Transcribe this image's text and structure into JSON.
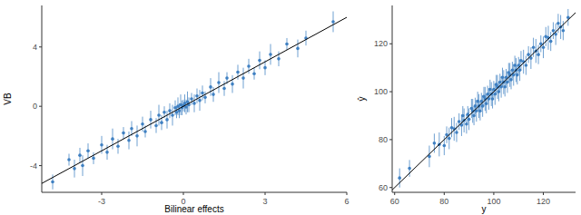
{
  "chart_data": [
    {
      "type": "scatter",
      "xlabel": "Bilinear effects",
      "ylabel": "VB",
      "color": "#3f80c2",
      "marker": "circle",
      "xlim": [
        -5.2,
        6.0
      ],
      "ylim": [
        -5.8,
        6.8
      ],
      "xticks": [
        -3,
        0,
        3,
        6
      ],
      "yticks": [
        -4,
        0,
        4
      ],
      "x": [
        -4.8,
        -4.2,
        -4.0,
        -3.8,
        -3.7,
        -3.5,
        -3.3,
        -3.0,
        -2.8,
        -2.6,
        -2.4,
        -2.2,
        -2.0,
        -1.9,
        -1.7,
        -1.5,
        -1.4,
        -1.2,
        -1.0,
        -0.9,
        -0.8,
        -0.7,
        -0.6,
        -0.5,
        -0.4,
        -0.3,
        -0.25,
        -0.2,
        -0.15,
        -0.1,
        -0.05,
        0,
        0.05,
        0.1,
        0.15,
        0.2,
        0.3,
        0.4,
        0.5,
        0.6,
        0.7,
        0.8,
        1.0,
        1.1,
        1.3,
        1.5,
        1.6,
        1.8,
        2.0,
        2.2,
        2.4,
        2.6,
        2.8,
        3.0,
        3.2,
        3.5,
        3.8,
        4.2,
        4.5,
        5.5
      ],
      "values": [
        -5.1,
        -3.6,
        -4.2,
        -3.3,
        -4.0,
        -3.0,
        -3.5,
        -2.6,
        -3.1,
        -2.2,
        -2.7,
        -1.8,
        -2.3,
        -1.5,
        -2.0,
        -1.2,
        -1.7,
        -0.9,
        -1.3,
        -0.6,
        -1.1,
        -0.4,
        -0.9,
        -0.3,
        -0.6,
        -0.1,
        -0.4,
        0.0,
        -0.3,
        0.1,
        -0.1,
        0.05,
        0.2,
        -0.05,
        0.3,
        0.1,
        0.5,
        0.2,
        0.7,
        0.4,
        0.9,
        0.6,
        1.3,
        0.8,
        1.6,
        1.2,
        1.9,
        1.5,
        2.3,
        1.9,
        2.7,
        2.2,
        3.1,
        2.6,
        3.5,
        3.2,
        4.2,
        3.9,
        4.6,
        5.7
      ],
      "errors": [
        0.5,
        0.4,
        0.6,
        0.5,
        0.7,
        0.5,
        0.4,
        0.6,
        0.5,
        0.7,
        0.5,
        0.4,
        0.6,
        0.5,
        0.7,
        0.5,
        0.4,
        0.6,
        0.5,
        0.7,
        0.5,
        0.4,
        0.6,
        0.5,
        0.7,
        0.5,
        0.4,
        0.6,
        0.5,
        0.7,
        0.5,
        0.4,
        0.6,
        0.5,
        0.7,
        0.5,
        0.4,
        0.6,
        0.5,
        0.7,
        0.5,
        0.4,
        0.6,
        0.5,
        0.7,
        0.5,
        0.4,
        0.6,
        0.5,
        0.7,
        0.5,
        0.4,
        0.6,
        0.5,
        0.7,
        0.5,
        0.4,
        0.6,
        0.5,
        0.7
      ],
      "reference_line": {
        "x": [
          -5.2,
          6.0
        ],
        "y": [
          -5.2,
          6.0
        ]
      }
    },
    {
      "type": "scatter",
      "xlabel": "y",
      "ylabel": "ŷ",
      "color": "#3f80c2",
      "marker": "circle",
      "xlim": [
        59,
        133
      ],
      "ylim": [
        58,
        136
      ],
      "xticks": [
        60,
        80,
        100,
        120
      ],
      "yticks": [
        60,
        80,
        100,
        120
      ],
      "x": [
        62,
        66,
        74,
        76,
        78,
        80,
        81,
        82,
        83,
        84,
        85,
        86,
        87,
        87.5,
        88,
        89,
        89.5,
        90,
        91,
        91.5,
        92,
        92.5,
        93,
        93.5,
        94,
        94.5,
        95,
        95.5,
        96,
        96.5,
        97,
        97.5,
        98,
        98.5,
        99,
        99.5,
        100,
        100.5,
        101,
        101.5,
        102,
        102.5,
        103,
        103.5,
        104,
        104.5,
        105,
        105.5,
        106,
        106.5,
        107,
        107.5,
        108,
        108.5,
        109,
        109.5,
        110,
        110.5,
        111,
        112,
        113,
        114,
        115,
        116,
        117,
        118,
        119,
        120,
        121,
        122,
        123,
        124,
        125,
        126,
        127,
        128,
        130
      ],
      "values": [
        64,
        68,
        73,
        78.5,
        78,
        77.5,
        82,
        80.5,
        85,
        84.5,
        83,
        87.5,
        86,
        90,
        88,
        86.5,
        90.5,
        88.5,
        93,
        92,
        90,
        94,
        92,
        96,
        94,
        92,
        96,
        94,
        98,
        97,
        95,
        99,
        97,
        101,
        99,
        97,
        101,
        99,
        103,
        102,
        100,
        104,
        102,
        106,
        104,
        102,
        106,
        104,
        108,
        107,
        105,
        109,
        107,
        111,
        109,
        107,
        111,
        109,
        113,
        112.5,
        111,
        115.5,
        114,
        118.5,
        117,
        115.5,
        120,
        118.5,
        123,
        122.5,
        121,
        125.5,
        124,
        128.5,
        127,
        125.5,
        131
      ],
      "errors": [
        4,
        3.5,
        4.5,
        4,
        5,
        4,
        3.5,
        4.5,
        4,
        5,
        4,
        3.5,
        4.5,
        4,
        5,
        4,
        3.5,
        4.5,
        4,
        5,
        4,
        3.5,
        4.5,
        4,
        5,
        4,
        3.5,
        4.5,
        4,
        5,
        4,
        3.5,
        4.5,
        4,
        5,
        4,
        3.5,
        4.5,
        4,
        5,
        4,
        3.5,
        4.5,
        4,
        5,
        4,
        3.5,
        4.5,
        4,
        5,
        4,
        3.5,
        4.5,
        4,
        5,
        4,
        3.5,
        4.5,
        4,
        5,
        4,
        3.5,
        4.5,
        4,
        5,
        4,
        3.5,
        4.5,
        4,
        5,
        4,
        3.5,
        4.5,
        4,
        5,
        4,
        3.5
      ],
      "reference_line": {
        "x": [
          59,
          133
        ],
        "y": [
          59,
          133
        ]
      }
    }
  ]
}
